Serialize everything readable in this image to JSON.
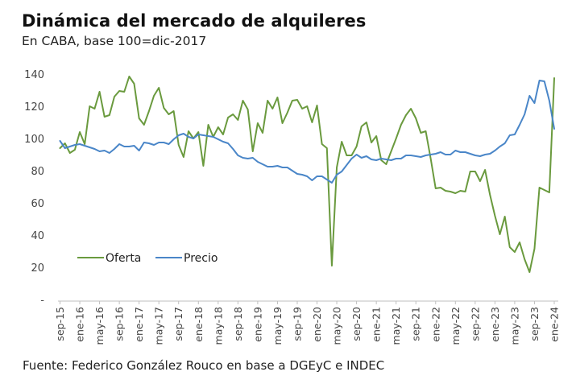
{
  "header": {
    "title": "Dinámica del mercado de alquileres",
    "subtitle": "En CABA, base 100=dic-2017"
  },
  "footer": {
    "source": "Fuente: Federico González Rouco en base a DGEyC e INDEC"
  },
  "colors": {
    "oferta": "#6a9a3e",
    "precio": "#4a86c8",
    "axis": "#bfbfbf"
  },
  "chart_data": {
    "type": "line",
    "title": "Dinámica del mercado de alquileres",
    "subtitle": "En CABA, base 100=dic-2017",
    "xlabel": "",
    "ylabel": "",
    "ylim": [
      0,
      140
    ],
    "yticks": [
      0,
      20,
      40,
      60,
      80,
      100,
      120,
      140
    ],
    "ytick_labels": [
      "-",
      "20",
      "40",
      "60",
      "80",
      "100",
      "120",
      "140"
    ],
    "xtick_labels": [
      "sep-15",
      "ene-16",
      "may-16",
      "sep-16",
      "ene-17",
      "may-17",
      "sep-17",
      "ene-18",
      "may-18",
      "sep-18",
      "ene-19",
      "may-19",
      "sep-19",
      "ene-20",
      "may-20",
      "sep-20",
      "ene-21",
      "may-21",
      "sep-21",
      "ene-22",
      "may-22",
      "sep-22",
      "ene-23",
      "may-23",
      "sep-23",
      "ene-24"
    ],
    "x_start": "sep-15",
    "x_end": "ene-24",
    "x_frequency": "monthly",
    "grid": false,
    "legend_position": "bottom-left",
    "series": [
      {
        "name": "Oferta",
        "color": "#6a9a3e",
        "values": [
          94,
          97,
          91,
          93,
          104,
          96.5,
          120,
          118.5,
          129,
          113.5,
          114.5,
          126,
          129.5,
          129,
          138.5,
          134,
          112.5,
          108.5,
          117,
          126.5,
          131.5,
          119,
          115,
          117,
          96,
          88.5,
          104.5,
          100,
          104,
          83,
          108.5,
          101,
          107,
          102.5,
          113,
          115,
          111.5,
          123.5,
          118,
          92,
          109.5,
          103.5,
          123.5,
          118.5,
          125.5,
          109.5,
          116,
          123.5,
          124,
          118.5,
          120,
          110,
          120.5,
          96.5,
          94,
          21,
          82,
          98,
          89.5,
          89.5,
          95,
          107.5,
          110,
          97.5,
          101.5,
          86.5,
          84,
          92,
          100,
          108.5,
          114.5,
          118.5,
          112.5,
          103.5,
          104.5,
          87.5,
          69,
          69.5,
          67.5,
          67,
          66,
          67.5,
          67,
          79.5,
          79.5,
          73.5,
          80.5,
          65,
          52,
          40.5,
          51.5,
          32.5,
          29.5,
          35.5,
          25,
          17,
          31.5,
          69.5,
          68,
          66.5,
          137.5
        ]
      },
      {
        "name": "Precio",
        "color": "#4a86c8",
        "values": [
          98.5,
          94,
          95,
          96,
          96.5,
          95.5,
          94.5,
          93.5,
          92,
          92.5,
          91,
          93.5,
          96.5,
          95,
          95,
          95.5,
          92.5,
          97.5,
          97,
          96,
          97.5,
          97.5,
          96.5,
          99.5,
          102,
          103,
          101,
          100,
          102.5,
          102,
          101.5,
          101,
          99.5,
          98,
          97,
          93.5,
          89.5,
          88,
          87.5,
          88,
          85.5,
          84,
          82.5,
          82.5,
          83,
          82,
          82,
          80,
          78,
          77.5,
          76.5,
          74,
          76.5,
          76.5,
          74.5,
          72.5,
          77.5,
          79.5,
          83.5,
          87.5,
          90,
          88,
          89,
          87,
          86.5,
          87.5,
          87,
          86.5,
          87.5,
          87.5,
          89.5,
          89.5,
          89,
          88.5,
          89.5,
          90,
          90.5,
          91.5,
          90,
          90,
          92.5,
          91.5,
          91.5,
          90.5,
          89.5,
          89,
          90,
          90.5,
          92.5,
          95,
          97,
          102,
          102.5,
          108.5,
          115,
          126.5,
          122,
          136,
          135.5,
          123.5,
          106
        ]
      }
    ]
  }
}
